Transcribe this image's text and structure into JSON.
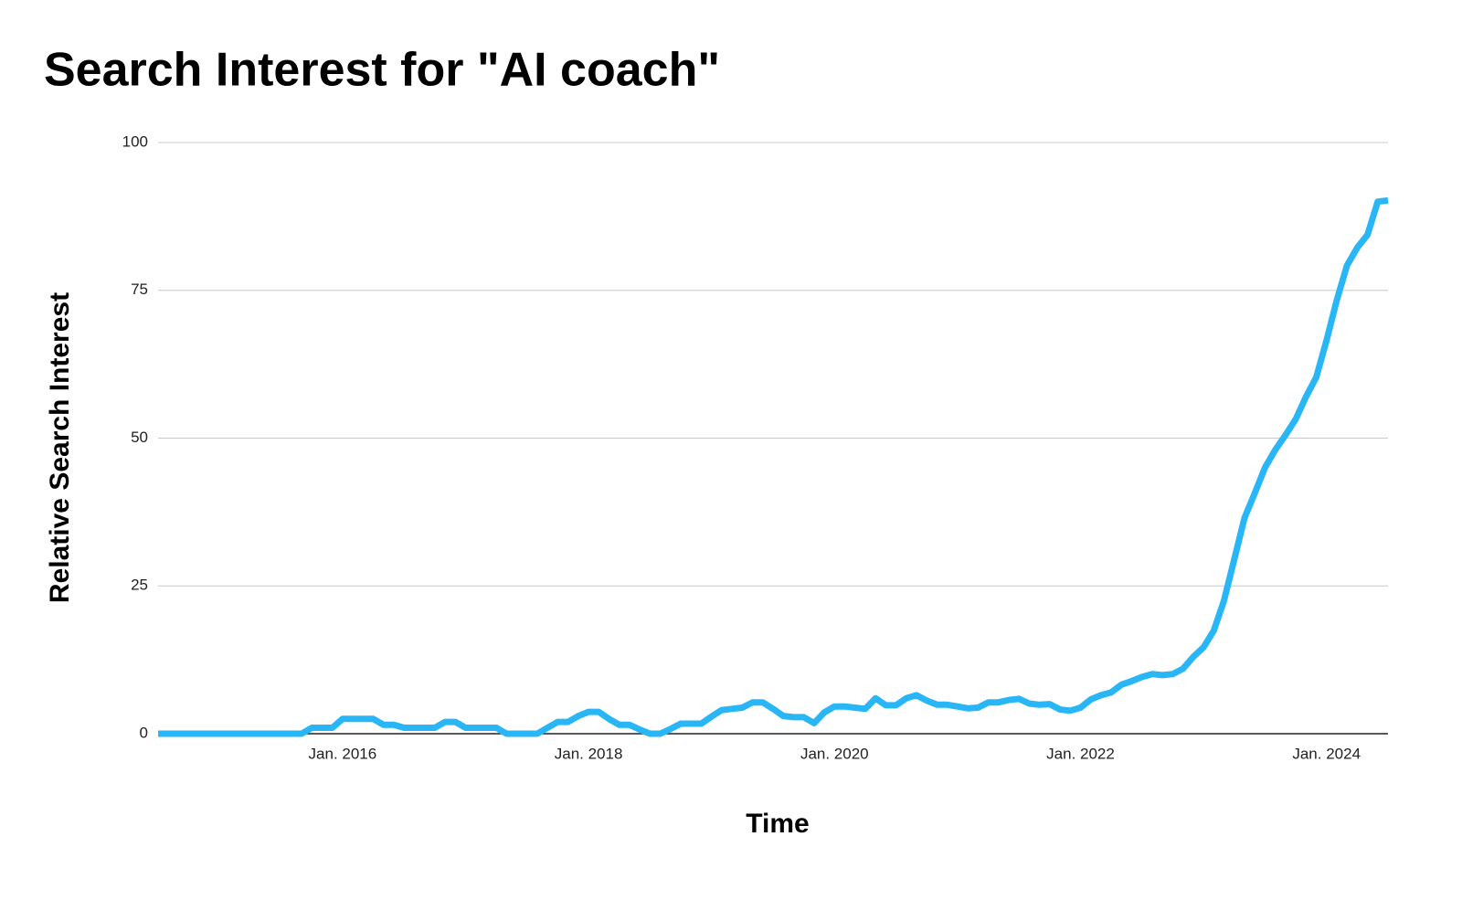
{
  "chart_data": {
    "type": "line",
    "title": "Search Interest for \"AI coach\"",
    "x_label": "Time",
    "y_label": "Relative Search Interest",
    "x": [
      "2014-07",
      "2014-08",
      "2014-09",
      "2014-10",
      "2014-11",
      "2014-12",
      "2015-01",
      "2015-02",
      "2015-03",
      "2015-04",
      "2015-05",
      "2015-06",
      "2015-07",
      "2015-08",
      "2015-09",
      "2015-10",
      "2015-11",
      "2015-12",
      "2016-01",
      "2016-02",
      "2016-03",
      "2016-04",
      "2016-05",
      "2016-06",
      "2016-07",
      "2016-08",
      "2016-09",
      "2016-10",
      "2016-11",
      "2016-12",
      "2017-01",
      "2017-02",
      "2017-03",
      "2017-04",
      "2017-05",
      "2017-06",
      "2017-07",
      "2017-08",
      "2017-09",
      "2017-10",
      "2017-11",
      "2017-12",
      "2018-01",
      "2018-02",
      "2018-03",
      "2018-04",
      "2018-05",
      "2018-06",
      "2018-07",
      "2018-08",
      "2018-09",
      "2018-10",
      "2018-11",
      "2018-12",
      "2019-01",
      "2019-02",
      "2019-03",
      "2019-04",
      "2019-05",
      "2019-06",
      "2019-07",
      "2019-08",
      "2019-09",
      "2019-10",
      "2019-11",
      "2019-12",
      "2020-01",
      "2020-02",
      "2020-03",
      "2020-04",
      "2020-05",
      "2020-06",
      "2020-07",
      "2020-08",
      "2020-09",
      "2020-10",
      "2020-11",
      "2020-12",
      "2021-01",
      "2021-02",
      "2021-03",
      "2021-04",
      "2021-05",
      "2021-06",
      "2021-07",
      "2021-08",
      "2021-09",
      "2021-10",
      "2021-11",
      "2021-12",
      "2022-01",
      "2022-02",
      "2022-03",
      "2022-04",
      "2022-05",
      "2022-06",
      "2022-07",
      "2022-08",
      "2022-09",
      "2022-10",
      "2022-11",
      "2022-12",
      "2023-01",
      "2023-02",
      "2023-03",
      "2023-04",
      "2023-05",
      "2023-06",
      "2023-07",
      "2023-08",
      "2023-09",
      "2023-10",
      "2023-11",
      "2023-12",
      "2024-01",
      "2024-02",
      "2024-03",
      "2024-04",
      "2024-05",
      "2024-06",
      "2024-07"
    ],
    "series": [
      {
        "name": "AI coach",
        "color": "#29b6f6",
        "values": [
          0,
          0,
          0,
          0,
          0,
          0,
          0,
          0,
          0,
          0,
          0,
          0,
          0,
          0,
          0,
          1,
          1,
          1,
          2.5,
          2.5,
          2.5,
          2.5,
          1.5,
          1.5,
          1,
          1,
          1,
          1,
          2,
          2,
          1,
          1,
          1,
          1,
          0,
          0,
          0,
          0,
          1,
          2,
          2,
          3,
          3.7,
          3.7,
          2.5,
          1.5,
          1.5,
          0.7,
          0,
          0,
          0.8,
          1.7,
          1.7,
          1.7,
          2.9,
          4,
          4.2,
          4.4,
          5.3,
          5.3,
          4.2,
          3,
          2.8,
          2.8,
          1.8,
          3.6,
          4.6,
          4.6,
          4.4,
          4.2,
          6,
          4.8,
          4.8,
          6,
          6.5,
          5.6,
          4.9,
          4.9,
          4.6,
          4.3,
          4.4,
          5.3,
          5.3,
          5.7,
          5.9,
          5.1,
          4.9,
          5,
          4.1,
          3.9,
          4.4,
          5.8,
          6.5,
          7,
          8.3,
          8.9,
          9.6,
          10.1,
          9.9,
          10.1,
          11,
          13,
          14.6,
          17.4,
          22.5,
          29.5,
          36.5,
          40.7,
          45,
          48,
          50.5,
          53.2,
          57,
          60.3,
          66.5,
          73.3,
          79.2,
          82.2,
          84.4,
          90,
          90.2
        ]
      }
    ],
    "xlim": [
      "2014-07",
      "2024-07"
    ],
    "xticks": [
      {
        "value": "2016-01",
        "label": "Jan. 2016"
      },
      {
        "value": "2018-01",
        "label": "Jan. 2018"
      },
      {
        "value": "2020-01",
        "label": "Jan. 2020"
      },
      {
        "value": "2022-01",
        "label": "Jan. 2022"
      },
      {
        "value": "2024-01",
        "label": "Jan. 2024"
      }
    ],
    "ylim": [
      0,
      100
    ],
    "yticks": [
      0,
      25,
      50,
      75,
      100
    ],
    "grid": true
  }
}
